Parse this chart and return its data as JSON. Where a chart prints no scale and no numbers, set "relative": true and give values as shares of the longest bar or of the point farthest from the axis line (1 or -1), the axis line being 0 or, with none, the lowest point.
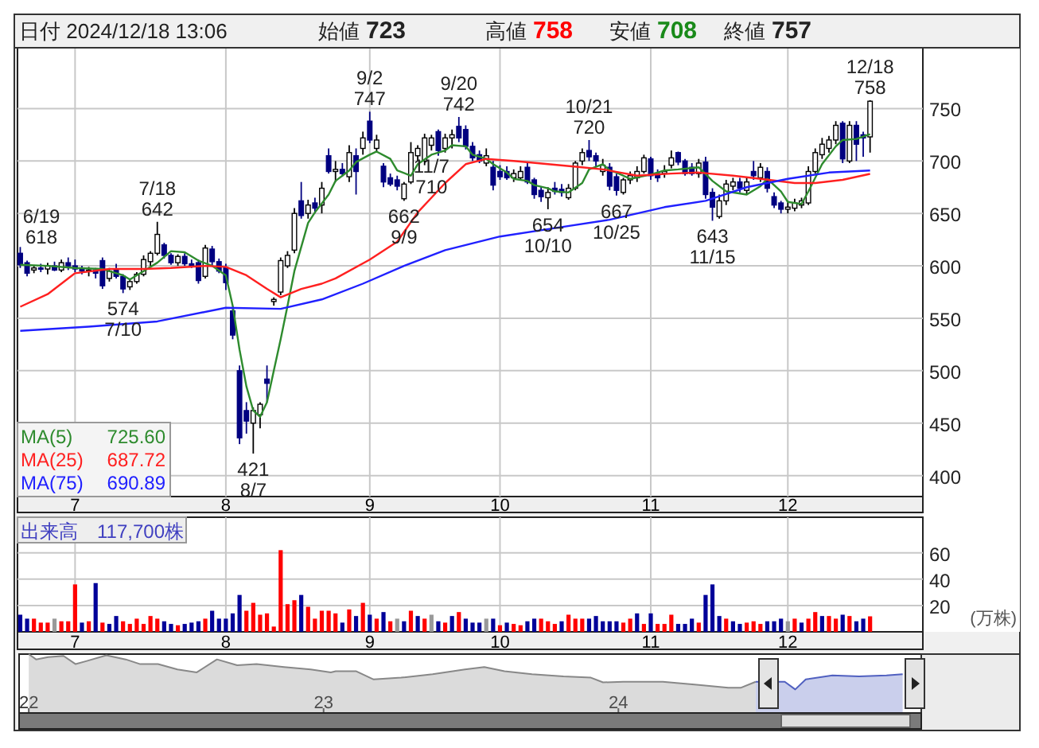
{
  "chart_data": [
    {
      "type": "candlestick",
      "title": "日付 2024/12/18 13:06",
      "ylim": [
        380,
        808
      ],
      "yticks": [
        400,
        450,
        500,
        550,
        600,
        650,
        700,
        750
      ],
      "grid": true,
      "categories": [
        null,
        null,
        null,
        null,
        null,
        null,
        null,
        null,
        "7",
        null,
        null,
        null,
        null,
        null,
        null,
        null,
        null,
        null,
        null,
        null,
        null,
        null,
        null,
        null,
        null,
        null,
        null,
        null,
        null,
        null,
        "8",
        null,
        null,
        null,
        null,
        null,
        null,
        null,
        null,
        null,
        null,
        null,
        null,
        null,
        null,
        null,
        null,
        null,
        null,
        null,
        null,
        "9",
        null,
        null,
        null,
        null,
        null,
        null,
        null,
        null,
        null,
        null,
        null,
        null,
        null,
        null,
        null,
        null,
        null,
        null,
        "10",
        null,
        null,
        null,
        null,
        null,
        null,
        null,
        null,
        null,
        null,
        null,
        null,
        null,
        null,
        null,
        null,
        null,
        null,
        null,
        null,
        null,
        "11",
        null,
        null,
        null,
        null,
        null,
        null,
        null,
        null,
        null,
        null,
        null,
        null,
        null,
        null,
        null,
        null,
        null,
        null,
        null,
        "12",
        null,
        null,
        null,
        null,
        null,
        null,
        null,
        null,
        null,
        null,
        null,
        null
      ],
      "series": [
        {
          "type": "candlestick",
          "colors": [
            "#000080",
            "#000080",
            "#ffffff",
            "#000080",
            "#ffffff",
            "#000080",
            "#ffffff",
            "#000080",
            "#000080",
            "#000080",
            "#ffffff",
            "#000080",
            "#000080",
            "#ffffff",
            "#000080",
            "#000080",
            "#ffffff",
            "#ffffff",
            "#ffffff",
            "#ffffff",
            "#ffffff",
            "#000080",
            "#000080",
            "#ffffff",
            "#000080",
            "#000080",
            "#000080",
            "#ffffff",
            "#000080",
            "#000080",
            "#000080",
            "#000080",
            "#000080",
            "#000080",
            "#ffffff",
            "#ffffff",
            "#000080",
            "#ffffff",
            "#ffffff",
            "#ffffff",
            "#ffffff",
            "#000080",
            "#ffffff",
            "#000080",
            "#ffffff",
            "#000080",
            "#ffffff",
            "#000080",
            "#ffffff",
            "#000080",
            "#ffffff",
            "#000080",
            "#ffffff",
            "#000080",
            "#000080",
            "#000080",
            "#ffffff",
            "#ffffff",
            "#ffffff",
            "#ffffff",
            "#ffffff",
            "#000080",
            "#ffffff",
            "#ffffff",
            "#000080",
            "#000080",
            "#000080",
            "#000080",
            "#ffffff",
            "#000080",
            "#000080",
            "#000080",
            "#ffffff",
            "#ffffff",
            "#000080",
            "#000080",
            "#000080",
            "#ffffff",
            "#000080",
            "#000080",
            "#ffffff",
            "#ffffff",
            "#ffffff",
            "#000080",
            "#000080",
            "#ffffff",
            "#000080",
            "#000080",
            "#ffffff",
            "#ffffff",
            "#ffffff",
            "#ffffff",
            "#000080",
            "#000080",
            "#ffffff",
            "#ffffff",
            "#000080",
            "#000080",
            "#000080",
            "#ffffff",
            "#000080",
            "#000080",
            "#ffffff",
            "#ffffff",
            "#ffffff",
            "#000080",
            "#ffffff",
            "#000080",
            "#ffffff",
            "#000080",
            "#000080",
            "#000080",
            "#ffffff",
            "#ffffff",
            "#ffffff",
            "#ffffff",
            "#ffffff",
            "#ffffff",
            "#ffffff",
            "#ffffff",
            "#000080",
            "#ffffff",
            "#000080",
            "#000080",
            "#ffffff"
          ],
          "ohlc": [
            [
              612,
              618,
              598,
              601
            ],
            [
              603,
              605,
              590,
              593
            ],
            [
              596,
              600,
              593,
              598
            ],
            [
              598,
              602,
              594,
              597
            ],
            [
              597,
              603,
              592,
              600
            ],
            [
              600,
              604,
              595,
              596
            ],
            [
              596,
              606,
              594,
              603
            ],
            [
              603,
              608,
              596,
              600
            ],
            [
              600,
              606,
              594,
              597
            ],
            [
              597,
              600,
              592,
              595
            ],
            [
              595,
              599,
              590,
              596
            ],
            [
              596,
              598,
              588,
              593
            ],
            [
              605,
              608,
              578,
              581
            ],
            [
              588,
              598,
              585,
              595
            ],
            [
              597,
              602,
              588,
              590
            ],
            [
              590,
              592,
              574,
              578
            ],
            [
              580,
              588,
              577,
              585
            ],
            [
              585,
              594,
              583,
              592
            ],
            [
              592,
              610,
              590,
              606
            ],
            [
              604,
              614,
              600,
              612
            ],
            [
              612,
              642,
              610,
              630
            ],
            [
              620,
              622,
              607,
              610
            ],
            [
              610,
              612,
              601,
              603
            ],
            [
              603,
              611,
              600,
              609
            ],
            [
              609,
              612,
              600,
              602
            ],
            [
              602,
              606,
              598,
              600
            ],
            [
              603,
              606,
              583,
              586
            ],
            [
              590,
              620,
              588,
              617
            ],
            [
              616,
              619,
              600,
              604
            ],
            [
              604,
              607,
              593,
              595
            ],
            [
              598,
              602,
              577,
              584
            ],
            [
              557,
              560,
              530,
              534
            ],
            [
              500,
              505,
              430,
              436
            ],
            [
              462,
              470,
              440,
              452
            ],
            [
              450,
              465,
              421,
              462
            ],
            [
              458,
              470,
              445,
              468
            ],
            [
              492,
              505,
              470,
              488
            ],
            [
              566,
              570,
              562,
              568
            ],
            [
              575,
              608,
              572,
              605
            ],
            [
              600,
              614,
              598,
              610
            ],
            [
              615,
              655,
              612,
              650
            ],
            [
              662,
              680,
              645,
              648
            ],
            [
              650,
              663,
              645,
              658
            ],
            [
              660,
              665,
              650,
              655
            ],
            [
              658,
              680,
              650,
              674
            ],
            [
              705,
              712,
              688,
              690
            ],
            [
              690,
              700,
              680,
              692
            ],
            [
              692,
              698,
              685,
              688
            ],
            [
              685,
              715,
              680,
              708
            ],
            [
              705,
              712,
              668,
              690
            ],
            [
              712,
              728,
              706,
              722
            ],
            [
              738,
              747,
              717,
              720
            ],
            [
              712,
              725,
              708,
              720
            ],
            [
              695,
              698,
              675,
              680
            ],
            [
              684,
              688,
              676,
              678
            ],
            [
              682,
              686,
              672,
              676
            ],
            [
              664,
              680,
              662,
              678
            ],
            [
              680,
              718,
              678,
              708
            ],
            [
              705,
              715,
              700,
              712
            ],
            [
              700,
              726,
              696,
              722
            ],
            [
              715,
              725,
              710,
              722
            ],
            [
              728,
              730,
              705,
              710
            ],
            [
              712,
              726,
              708,
              722
            ],
            [
              722,
              730,
              712,
              725
            ],
            [
              733,
              742,
              718,
              722
            ],
            [
              730,
              734,
              711,
              714
            ],
            [
              714,
              718,
              700,
              703
            ],
            [
              706,
              710,
              698,
              700
            ],
            [
              698,
              712,
              695,
              705
            ],
            [
              694,
              700,
              672,
              677
            ],
            [
              690,
              696,
              682,
              685
            ],
            [
              690,
              695,
              682,
              684
            ],
            [
              684,
              692,
              680,
              688
            ],
            [
              684,
              695,
              682,
              690
            ],
            [
              694,
              698,
              678,
              680
            ],
            [
              682,
              684,
              664,
              668
            ],
            [
              672,
              676,
              661,
              666
            ],
            [
              665,
              675,
              654,
              670
            ],
            [
              674,
              680,
              668,
              671
            ],
            [
              673,
              678,
              666,
              670
            ],
            [
              665,
              678,
              663,
              674
            ],
            [
              674,
              700,
              672,
              698
            ],
            [
              700,
              712,
              696,
              708
            ],
            [
              710,
              720,
              700,
              704
            ],
            [
              705,
              708,
              695,
              700
            ],
            [
              690,
              702,
              686,
              696
            ],
            [
              694,
              698,
              672,
              676
            ],
            [
              685,
              688,
              667,
              672
            ],
            [
              670,
              684,
              668,
              682
            ],
            [
              682,
              690,
              678,
              686
            ],
            [
              684,
              695,
              680,
              690
            ],
            [
              690,
              706,
              688,
              703
            ],
            [
              702,
              704,
              682,
              686
            ],
            [
              688,
              692,
              680,
              684
            ],
            [
              688,
              696,
              684,
              690
            ],
            [
              696,
              710,
              693,
              703
            ],
            [
              708,
              709,
              696,
              699
            ],
            [
              700,
              702,
              686,
              688
            ],
            [
              694,
              698,
              686,
              688
            ],
            [
              688,
              702,
              684,
              698
            ],
            [
              699,
              704,
              664,
              668
            ],
            [
              670,
              674,
              643,
              656
            ],
            [
              647,
              668,
              645,
              662
            ],
            [
              662,
              682,
              658,
              678
            ],
            [
              676,
              684,
              672,
              680
            ],
            [
              680,
              684,
              670,
              674
            ],
            [
              672,
              684,
              668,
              680
            ],
            [
              690,
              700,
              682,
              686
            ],
            [
              684,
              698,
              680,
              694
            ],
            [
              690,
              694,
              670,
              674
            ],
            [
              666,
              670,
              655,
              658
            ],
            [
              660,
              662,
              650,
              654
            ],
            [
              654,
              662,
              650,
              656
            ],
            [
              655,
              664,
              652,
              660
            ],
            [
              658,
              665,
              655,
              662
            ],
            [
              660,
              695,
              658,
              690
            ],
            [
              690,
              712,
              688,
              708
            ],
            [
              706,
              722,
              702,
              716
            ],
            [
              712,
              724,
              708,
              720
            ],
            [
              720,
              738,
              716,
              734
            ],
            [
              736,
              738,
              698,
              702
            ],
            [
              700,
              738,
              698,
              734
            ],
            [
              734,
              738,
              700,
              716
            ],
            [
              725,
              728,
              704,
              722
            ],
            [
              723,
              758,
              708,
              757
            ]
          ]
        },
        {
          "type": "line",
          "name": "MA(5) 725.60",
          "color": "#2e8b2e",
          "values": [
            601,
            null,
            null,
            null,
            600,
            null,
            null,
            null,
            598,
            null,
            null,
            null,
            597,
            null,
            null,
            591,
            587,
            null,
            595,
            null,
            603,
            null,
            614,
            null,
            613,
            null,
            605,
            null,
            600,
            null,
            591,
            562,
            520,
            485,
            462,
            456,
            470,
            500,
            530,
            562,
            595,
            618,
            641,
            651,
            null,
            668,
            681,
            null,
            691,
            699,
            null,
            706,
            709,
            null,
            702,
            691,
            null,
            686,
            697,
            null,
            706,
            null,
            710,
            715,
            null,
            714,
            706,
            null,
            702,
            697,
            null,
            689,
            683,
            null,
            681,
            677,
            null,
            674,
            671,
            null,
            670,
            null,
            679,
            692,
            null,
            697,
            691,
            689,
            null,
            683,
            null,
            null,
            687,
            null,
            691,
            null,
            692,
            null,
            null,
            694,
            null,
            681,
            null,
            671,
            null,
            null,
            668,
            null,
            676,
            683,
            null,
            671,
            661,
            null,
            659,
            671,
            null,
            697,
            null,
            714,
            720,
            null,
            721,
            null,
            725.6
          ]
        },
        {
          "type": "line",
          "name": "MA(25) 687.72",
          "color": "#ff2020",
          "values": [
            561,
            null,
            null,
            null,
            573,
            null,
            null,
            null,
            593,
            null,
            null,
            null,
            null,
            597,
            null,
            null,
            null,
            null,
            597,
            null,
            null,
            null,
            598,
            null,
            null,
            null,
            null,
            600,
            null,
            null,
            599,
            null,
            null,
            591,
            null,
            null,
            578,
            null,
            570,
            null,
            null,
            578,
            null,
            null,
            583,
            null,
            588,
            null,
            null,
            null,
            null,
            606,
            null,
            null,
            null,
            623,
            null,
            null,
            651,
            null,
            null,
            null,
            679,
            null,
            null,
            697,
            null,
            null,
            702,
            null,
            null,
            null,
            700,
            null,
            null,
            null,
            null,
            697,
            null,
            null,
            null,
            null,
            694,
            null,
            null,
            692,
            null,
            null,
            null,
            null,
            686,
            null,
            null,
            null,
            null,
            688,
            null,
            null,
            null,
            689,
            null,
            null,
            null,
            null,
            686,
            null,
            null,
            null,
            683,
            null,
            null,
            null,
            null,
            679,
            null,
            null,
            679,
            null,
            null,
            null,
            682,
            null,
            null,
            null,
            687.72
          ]
        },
        {
          "type": "line",
          "name": "MA(75) 690.89",
          "color": "#2020ff",
          "values": [
            538,
            null,
            null,
            null,
            null,
            null,
            null,
            null,
            null,
            null,
            542,
            null,
            null,
            null,
            null,
            null,
            null,
            null,
            null,
            null,
            547,
            null,
            null,
            null,
            null,
            null,
            null,
            null,
            null,
            null,
            560,
            null,
            null,
            null,
            null,
            null,
            null,
            null,
            559,
            null,
            null,
            null,
            null,
            null,
            568,
            null,
            null,
            null,
            null,
            null,
            583,
            null,
            null,
            null,
            null,
            null,
            600,
            null,
            null,
            null,
            null,
            null,
            615,
            null,
            null,
            null,
            null,
            null,
            null,
            null,
            628,
            null,
            null,
            null,
            null,
            null,
            null,
            null,
            636,
            null,
            null,
            null,
            null,
            null,
            null,
            null,
            644,
            null,
            null,
            null,
            null,
            null,
            null,
            null,
            656,
            null,
            null,
            null,
            null,
            null,
            662,
            null,
            null,
            null,
            null,
            null,
            675,
            null,
            null,
            null,
            null,
            null,
            683,
            null,
            null,
            null,
            null,
            null,
            689,
            null,
            null,
            null,
            null,
            null,
            690.89
          ]
        }
      ],
      "annotations": [
        "始値 723",
        "高値 758",
        "安値 708",
        "終値 757",
        "6/19\n618",
        {
          "text": "574\n7/10",
          "y": 574
        },
        {
          "text": "7/18\n642",
          "y": 642
        },
        {
          "text": "421\n8/7",
          "y": 421
        },
        {
          "text": "9/2\n747",
          "y": 747
        },
        {
          "text": "662\n9/9",
          "y": 662
        },
        {
          "text": "9/20\n742",
          "y": 742
        },
        {
          "text": "654\n10/10",
          "y": 654
        },
        {
          "text": "10/21\n720",
          "y": 720
        },
        {
          "text": "667\n10/25",
          "y": 667
        },
        {
          "text": "11/7\n710",
          "y": 710
        },
        {
          "text": "643\n11/15",
          "y": 643
        },
        {
          "text": "12/18\n758",
          "y": 758
        }
      ]
    },
    {
      "type": "bar",
      "title": "出来高　117,700株",
      "ylabel": "(万株)",
      "ylim": [
        0,
        87
      ],
      "yticks": [
        20,
        40,
        60
      ],
      "grid": true,
      "categories": [
        null,
        null,
        null,
        null,
        null,
        null,
        null,
        null,
        "7",
        null,
        null,
        null,
        null,
        null,
        null,
        null,
        null,
        null,
        null,
        null,
        null,
        null,
        null,
        null,
        null,
        null,
        null,
        null,
        null,
        null,
        "8",
        null,
        null,
        null,
        null,
        null,
        null,
        null,
        null,
        null,
        null,
        null,
        null,
        null,
        null,
        null,
        null,
        null,
        null,
        null,
        null,
        "9",
        null,
        null,
        null,
        null,
        null,
        null,
        null,
        null,
        null,
        null,
        null,
        null,
        null,
        null,
        null,
        null,
        null,
        null,
        "10",
        null,
        null,
        null,
        null,
        null,
        null,
        null,
        null,
        null,
        null,
        null,
        null,
        null,
        null,
        null,
        null,
        null,
        null,
        null,
        null,
        null,
        "11",
        null,
        null,
        null,
        null,
        null,
        null,
        null,
        null,
        null,
        null,
        null,
        null,
        null,
        null,
        null,
        null,
        null,
        null,
        null,
        "12",
        null,
        null,
        null,
        null,
        null,
        null,
        null,
        null,
        null,
        null,
        null,
        null
      ],
      "series": [
        {
          "values": [
            13,
            10,
            10,
            7,
            7,
            10,
            8,
            8,
            36,
            7,
            8,
            37,
            7,
            6,
            12,
            8,
            6,
            10,
            6,
            12,
            10,
            8,
            6,
            5,
            6,
            7,
            8,
            10,
            16,
            10,
            10,
            14,
            28,
            16,
            22,
            13,
            14,
            4,
            62,
            21,
            24,
            28,
            19,
            10,
            16,
            16,
            14,
            7,
            17,
            12,
            22,
            13,
            10,
            15,
            8,
            10,
            8,
            16,
            12,
            10,
            13,
            8,
            7,
            12,
            15,
            10,
            7,
            7,
            10,
            10,
            5,
            7,
            6,
            5,
            8,
            10,
            10,
            8,
            6,
            8,
            13,
            10,
            10,
            10,
            12,
            8,
            8,
            8,
            7,
            10,
            14,
            6,
            14,
            6,
            6,
            13,
            6,
            6,
            10,
            7,
            28,
            36,
            12,
            10,
            8,
            6,
            7,
            8,
            6,
            8,
            8,
            10,
            8,
            10,
            7,
            10,
            15,
            12,
            12,
            10,
            13,
            12,
            8,
            10,
            11.77
          ],
          "colors": [
            "#000099",
            "#000099",
            "#ff0000",
            "#ff0000",
            "#ff0000",
            "#999999",
            "#ff0000",
            "#ff0000",
            "#ff0000",
            "#000099",
            "#ff0000",
            "#000099",
            "#ff0000",
            "#000099",
            "#000099",
            "#ff0000",
            "#ff0000",
            "#ff0000",
            "#ff0000",
            "#ff0000",
            "#ff0000",
            "#000099",
            "#000099",
            "#ff0000",
            "#000099",
            "#000099",
            "#000099",
            "#ff0000",
            "#000099",
            "#000099",
            "#000099",
            "#000099",
            "#000099",
            "#ff0000",
            "#ff0000",
            "#ff0000",
            "#ff0000",
            "#ff0000",
            "#ff0000",
            "#ff0000",
            "#ff0000",
            "#000099",
            "#ff0000",
            "#ff0000",
            "#ff0000",
            "#ff0000",
            "#ff0000",
            "#000099",
            "#ff0000",
            "#000099",
            "#ff0000",
            "#000099",
            "#ff0000",
            "#000099",
            "#ff0000",
            "#999999",
            "#000099",
            "#ff0000",
            "#000099",
            "#ff0000",
            "#999999",
            "#000099",
            "#ff0000",
            "#000099",
            "#ff0000",
            "#000099",
            "#000099",
            "#000099",
            "#999999",
            "#000099",
            "#ff0000",
            "#000099",
            "#ff0000",
            "#ff0000",
            "#000099",
            "#000099",
            "#ff0000",
            "#ff0000",
            "#ff0000",
            "#000099",
            "#ff0000",
            "#ff0000",
            "#ff0000",
            "#000099",
            "#000099",
            "#000099",
            "#000099",
            "#000099",
            "#ff0000",
            "#ff0000",
            "#000099",
            "#ff0000",
            "#000099",
            "#ff0000",
            "#ff0000",
            "#ff0000",
            "#000099",
            "#000099",
            "#000099",
            "#ff0000",
            "#000099",
            "#000099",
            "#000099",
            "#ff0000",
            "#000099",
            "#000099",
            "#ff0000",
            "#ff0000",
            "#ff0000",
            "#000099",
            "#000099",
            "#000099",
            "#999999",
            "#ff0000",
            "#000099",
            "#ff0000",
            "#ff0000",
            "#000099",
            "#ff0000",
            "#ff0000",
            "#000099",
            "#ff0000",
            "#000099",
            "#000099",
            "#ff0000"
          ]
        }
      ]
    },
    {
      "type": "area",
      "relative": true,
      "xlim": [
        "2021-12-20",
        "2025-01-10"
      ],
      "xticks": [
        {
          "value": "2022",
          "label": "22"
        },
        {
          "value": "2023",
          "label": "23"
        },
        {
          "value": "2024",
          "label": "24"
        }
      ],
      "series": [
        {
          "color": "#888888",
          "x": [
            "2022-01-01",
            "2022-01-10",
            "2022-01-25",
            "2022-02-13",
            "2022-02-28",
            "2022-03-13",
            "2022-04-07",
            "2022-05-01",
            "2022-05-19",
            "2022-06-10",
            "2022-07-04",
            "2022-07-28",
            "2022-08-22",
            "2022-09-16",
            "2022-10-10",
            "2022-11-13",
            "2022-12-16",
            "2023-01-10",
            "2023-01-16",
            "2023-02-10",
            "2023-03-04",
            "2023-04-07",
            "2023-05-16",
            "2023-06-25",
            "2023-07-19",
            "2023-08-13",
            "2023-09-16",
            "2023-10-25",
            "2023-11-28",
            "2023-12-13",
            "2024-01-07",
            "2024-01-25",
            "2024-02-25",
            "2024-04-07",
            "2024-05-16",
            "2024-06-01",
            "2024-06-19"
          ],
          "values": [
            1.0,
            0.91,
            0.95,
            0.97,
            0.83,
            0.88,
            0.98,
            0.91,
            0.83,
            0.83,
            0.74,
            0.69,
            0.91,
            0.81,
            0.83,
            0.78,
            0.74,
            0.69,
            0.71,
            0.71,
            0.57,
            0.6,
            0.66,
            0.74,
            0.78,
            0.71,
            0.66,
            0.62,
            0.6,
            0.52,
            0.53,
            0.53,
            0.53,
            0.48,
            0.43,
            0.43,
            0.53
          ]
        },
        {
          "color": "#5060c0",
          "x": [
            "2024-06-19",
            "2024-07-25",
            "2024-08-07",
            "2024-08-20",
            "2024-09-22",
            "2024-10-25",
            "2024-11-28",
            "2024-12-18"
          ],
          "values": [
            0.53,
            0.53,
            0.4,
            0.57,
            0.64,
            0.62,
            0.64,
            0.66
          ]
        }
      ]
    }
  ]
}
